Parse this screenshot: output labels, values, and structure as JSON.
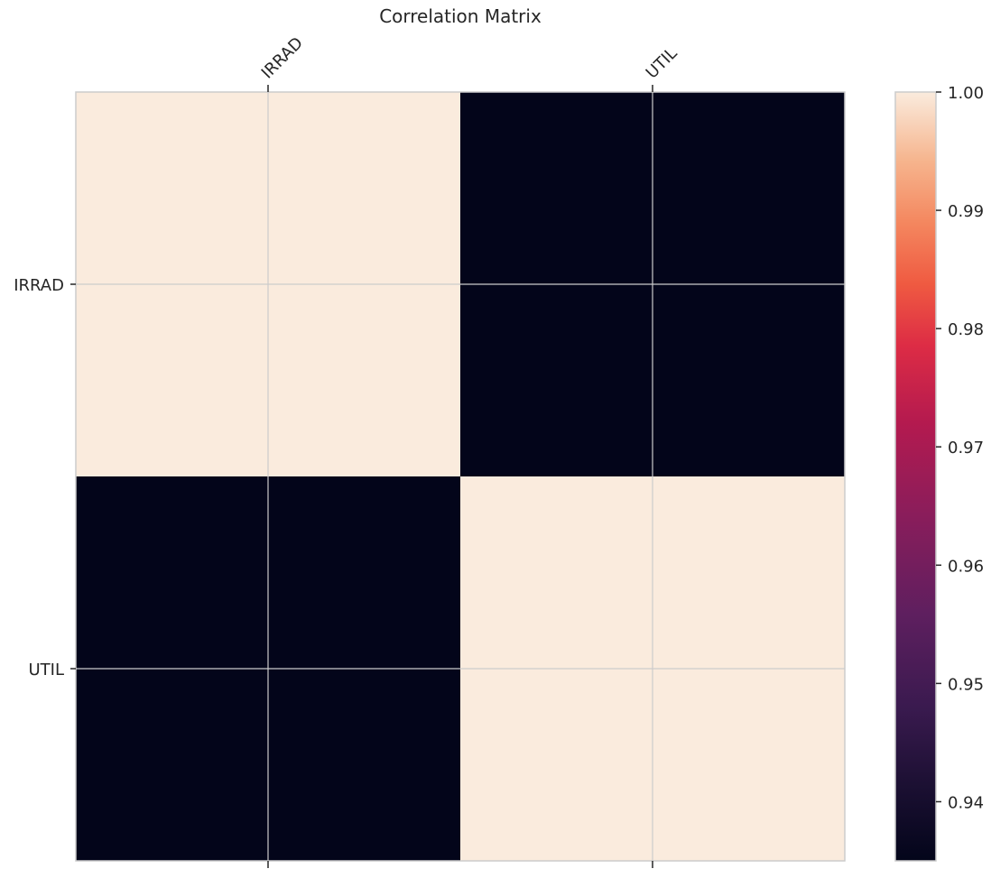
{
  "chart_data": {
    "type": "heatmap",
    "title": "Correlation Matrix",
    "x_labels": [
      "IRRAD",
      "UTIL"
    ],
    "y_labels": [
      "IRRAD",
      "UTIL"
    ],
    "values": [
      [
        1.0,
        0.935
      ],
      [
        0.935,
        1.0
      ]
    ],
    "colorbar": {
      "min": 0.935,
      "max": 1.0,
      "ticks": [
        0.94,
        0.95,
        0.96,
        0.97,
        0.98,
        0.99,
        1.0
      ],
      "tick_labels": [
        "0.94",
        "0.95",
        "0.96",
        "0.97",
        "0.98",
        "0.99",
        "1.00"
      ],
      "colormap": "rocket"
    },
    "grid": true,
    "x_tick_rotation": 45
  }
}
